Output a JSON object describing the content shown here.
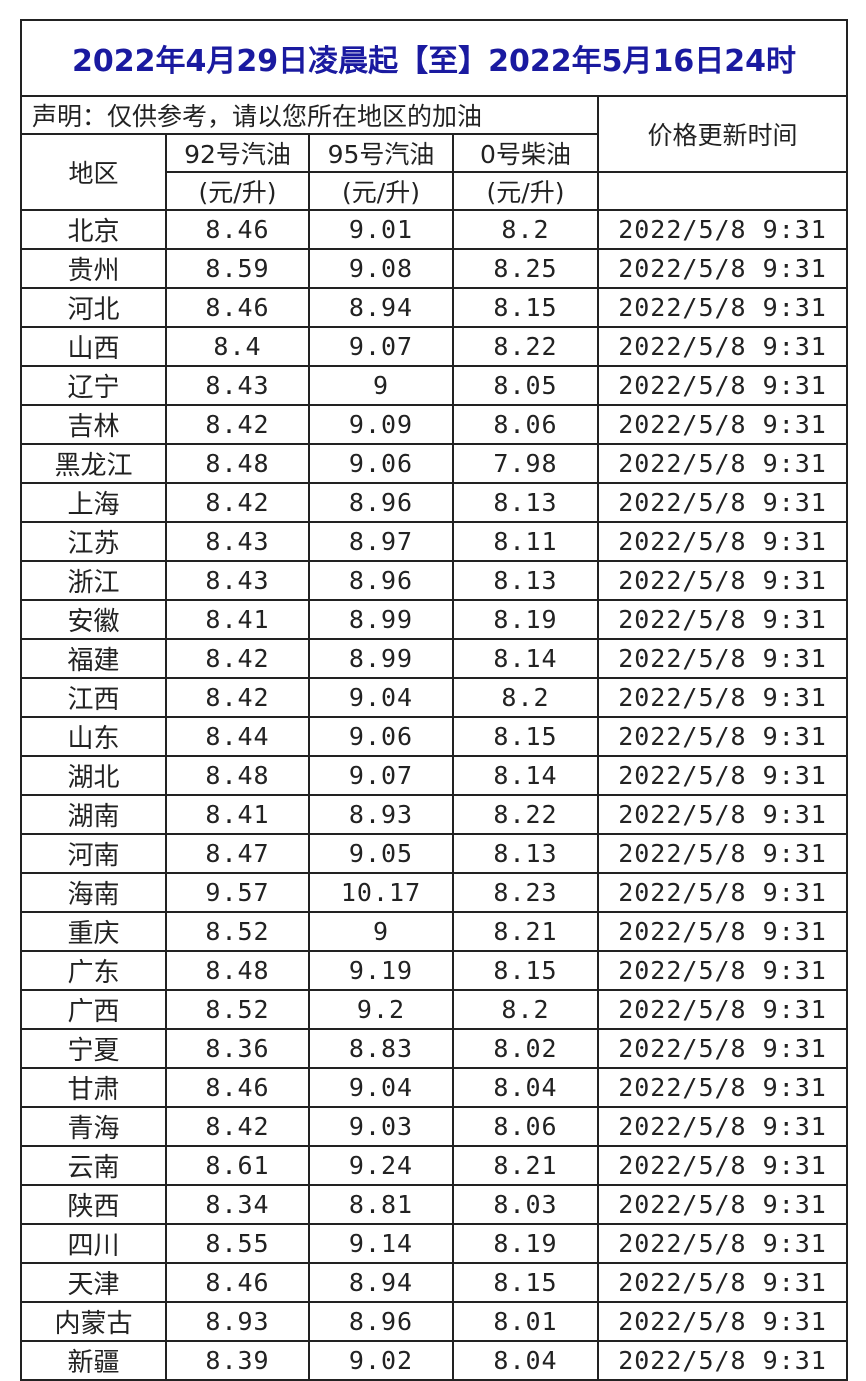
{
  "title": "2022年4月29日凌晨起【至】2022年5月16日24时",
  "disclaimer": "声明：仅供参考，请以您所在地区的加油",
  "headers": {
    "region": "地区",
    "gas92": "92号汽油",
    "gas95": "95号汽油",
    "diesel0": "0号柴油",
    "unit": "(元/升)",
    "update_time": "价格更新时间"
  },
  "title_color": "#1a1aa0",
  "rows": [
    {
      "region": "北京",
      "p92": "8.46",
      "p95": "9.01",
      "p0": "8.2",
      "time": "2022/5/8 9:31"
    },
    {
      "region": "贵州",
      "p92": "8.59",
      "p95": "9.08",
      "p0": "8.25",
      "time": "2022/5/8 9:31"
    },
    {
      "region": "河北",
      "p92": "8.46",
      "p95": "8.94",
      "p0": "8.15",
      "time": "2022/5/8 9:31"
    },
    {
      "region": "山西",
      "p92": "8.4",
      "p95": "9.07",
      "p0": "8.22",
      "time": "2022/5/8 9:31"
    },
    {
      "region": "辽宁",
      "p92": "8.43",
      "p95": "9",
      "p0": "8.05",
      "time": "2022/5/8 9:31"
    },
    {
      "region": "吉林",
      "p92": "8.42",
      "p95": "9.09",
      "p0": "8.06",
      "time": "2022/5/8 9:31"
    },
    {
      "region": "黑龙江",
      "p92": "8.48",
      "p95": "9.06",
      "p0": "7.98",
      "time": "2022/5/8 9:31"
    },
    {
      "region": "上海",
      "p92": "8.42",
      "p95": "8.96",
      "p0": "8.13",
      "time": "2022/5/8 9:31"
    },
    {
      "region": "江苏",
      "p92": "8.43",
      "p95": "8.97",
      "p0": "8.11",
      "time": "2022/5/8 9:31"
    },
    {
      "region": "浙江",
      "p92": "8.43",
      "p95": "8.96",
      "p0": "8.13",
      "time": "2022/5/8 9:31"
    },
    {
      "region": "安徽",
      "p92": "8.41",
      "p95": "8.99",
      "p0": "8.19",
      "time": "2022/5/8 9:31"
    },
    {
      "region": "福建",
      "p92": "8.42",
      "p95": "8.99",
      "p0": "8.14",
      "time": "2022/5/8 9:31"
    },
    {
      "region": "江西",
      "p92": "8.42",
      "p95": "9.04",
      "p0": "8.2",
      "time": "2022/5/8 9:31"
    },
    {
      "region": "山东",
      "p92": "8.44",
      "p95": "9.06",
      "p0": "8.15",
      "time": "2022/5/8 9:31"
    },
    {
      "region": "湖北",
      "p92": "8.48",
      "p95": "9.07",
      "p0": "8.14",
      "time": "2022/5/8 9:31"
    },
    {
      "region": "湖南",
      "p92": "8.41",
      "p95": "8.93",
      "p0": "8.22",
      "time": "2022/5/8 9:31"
    },
    {
      "region": "河南",
      "p92": "8.47",
      "p95": "9.05",
      "p0": "8.13",
      "time": "2022/5/8 9:31"
    },
    {
      "region": "海南",
      "p92": "9.57",
      "p95": "10.17",
      "p0": "8.23",
      "time": "2022/5/8 9:31"
    },
    {
      "region": "重庆",
      "p92": "8.52",
      "p95": "9",
      "p0": "8.21",
      "time": "2022/5/8 9:31"
    },
    {
      "region": "广东",
      "p92": "8.48",
      "p95": "9.19",
      "p0": "8.15",
      "time": "2022/5/8 9:31"
    },
    {
      "region": "广西",
      "p92": "8.52",
      "p95": "9.2",
      "p0": "8.2",
      "time": "2022/5/8 9:31"
    },
    {
      "region": "宁夏",
      "p92": "8.36",
      "p95": "8.83",
      "p0": "8.02",
      "time": "2022/5/8 9:31"
    },
    {
      "region": "甘肃",
      "p92": "8.46",
      "p95": "9.04",
      "p0": "8.04",
      "time": "2022/5/8 9:31"
    },
    {
      "region": "青海",
      "p92": "8.42",
      "p95": "9.03",
      "p0": "8.06",
      "time": "2022/5/8 9:31"
    },
    {
      "region": "云南",
      "p92": "8.61",
      "p95": "9.24",
      "p0": "8.21",
      "time": "2022/5/8 9:31"
    },
    {
      "region": "陕西",
      "p92": "8.34",
      "p95": "8.81",
      "p0": "8.03",
      "time": "2022/5/8 9:31"
    },
    {
      "region": "四川",
      "p92": "8.55",
      "p95": "9.14",
      "p0": "8.19",
      "time": "2022/5/8 9:31"
    },
    {
      "region": "天津",
      "p92": "8.46",
      "p95": "8.94",
      "p0": "8.15",
      "time": "2022/5/8 9:31"
    },
    {
      "region": "内蒙古",
      "p92": "8.93",
      "p95": "8.96",
      "p0": "8.01",
      "time": "2022/5/8 9:31"
    },
    {
      "region": "新疆",
      "p92": "8.39",
      "p95": "9.02",
      "p0": "8.04",
      "time": "2022/5/8 9:31"
    }
  ]
}
